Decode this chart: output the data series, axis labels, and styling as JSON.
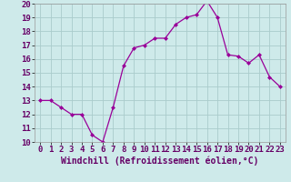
{
  "x": [
    0,
    1,
    2,
    3,
    4,
    5,
    6,
    7,
    8,
    9,
    10,
    11,
    12,
    13,
    14,
    15,
    16,
    17,
    18,
    19,
    20,
    21,
    22,
    23
  ],
  "y": [
    13,
    13,
    12.5,
    12,
    12,
    10.5,
    10,
    12.5,
    15.5,
    16.8,
    17,
    17.5,
    17.5,
    18.5,
    19,
    19.2,
    20.2,
    19,
    16.3,
    16.2,
    15.7,
    16.3,
    14.7,
    14
  ],
  "line_color": "#990099",
  "marker": "D",
  "marker_size": 2.0,
  "bg_color": "#ceeaea",
  "grid_color": "#aacccc",
  "xlabel": "Windchill (Refroidissement éolien,°C)",
  "xlabel_fontsize": 7,
  "tick_fontsize": 6.5,
  "ylim": [
    10,
    20
  ],
  "xlim_min": -0.5,
  "xlim_max": 23.5,
  "yticks": [
    10,
    11,
    12,
    13,
    14,
    15,
    16,
    17,
    18,
    19,
    20
  ],
  "xticks": [
    0,
    1,
    2,
    3,
    4,
    5,
    6,
    7,
    8,
    9,
    10,
    11,
    12,
    13,
    14,
    15,
    16,
    17,
    18,
    19,
    20,
    21,
    22,
    23
  ]
}
